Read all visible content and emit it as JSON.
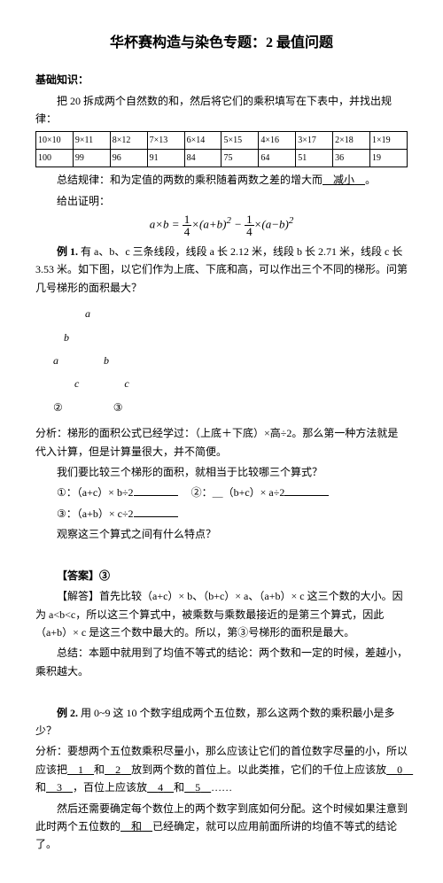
{
  "title": "华杯赛构造与染色专题：2 最值问题",
  "sec1": "基础知识：",
  "intro": "把 20 拆成两个自然数的和，然后将它们的乘积填写在下表中，并找出规律：",
  "table": {
    "row1": [
      "10×10",
      "9×11",
      "8×12",
      "7×13",
      "6×14",
      "5×15",
      "4×16",
      "3×17",
      "2×18",
      "1×19"
    ],
    "row2": [
      "100",
      "99",
      "96",
      "91",
      "84",
      "75",
      "64",
      "51",
      "36",
      "19"
    ]
  },
  "rule_prefix": "总结规律：和为定值的两数的乘积随着两数之差的增大而",
  "rule_ans": "减小",
  "rule_suffix": "。",
  "proof_label": "给出证明：",
  "formula": {
    "lhs": "a×b =",
    "t1a": "×(a+b)",
    "t1exp": "2",
    "mid": " − ",
    "t2a": "×(a−b)",
    "t2exp": "2"
  },
  "ex1": {
    "label": "例 1.",
    "body": "有 a、b、c 三条线段，线段 a 长 2.12 米，线段 b 长 2.71 米，线段 c 长 3.53 米。如下图，以它们作为上底、下底和高，可以作出三个不同的梯形。问第几号梯形的面积最大？"
  },
  "diagram": {
    "r1": "            a",
    "r2": "    b",
    "r3": "a                 b",
    "r4": "        c                 c",
    "c1": "②",
    "c2": "③"
  },
  "analysis1": {
    "p1": "分析：梯形的面积公式已经学过：（上底＋下底）×高÷2。那么第一种方法就是代入计算，但是计算量很大，并不简便。",
    "p2": "我们要比较三个梯形的面积，就相当于比较哪三个算式？",
    "l1a": "①：（a+c）× b÷2",
    "l1b": "②：＿（b+c）× a÷2",
    "l2": "③：（a+b）× c÷2",
    "p3": "观察这三个算式之间有什么特点？"
  },
  "ans": {
    "head": "【答案】③",
    "body": "【解答】首先比较（a+c）× b、（b+c）× a、（a+b）× c 这三个数的大小。因为 a<b<c，所以这三个算式中，被乘数与乘数最接近的是第三个算式，因此（a+b）× c 是这三个数中最大的。所以，第③号梯形的面积是最大。",
    "note": "总结：本题中就用到了均值不等式的结论：两个数和一定的时候，差越小，乘积越大。"
  },
  "ex2": {
    "label": "例 2.",
    "q": "用 0~9 这 10 个数字组成两个五位数，那么这两个数的乘积最小是多少？",
    "p_pre": "分析：要想两个五位数乘积尽量小，那么应该让它们的首位数字尽量的小，所以应该把",
    "a1": "1",
    "mid1": "和",
    "a2": "2",
    "p_mid": "放到两个数的首位上。以此类推，它们的千位上应该放",
    "a3": "0",
    "mid2": "和",
    "a4": "3",
    "p_mid2": "，百位上应该放",
    "a5": "4",
    "mid3": "和",
    "a6": "5",
    "p_end": "……",
    "p2a": "然后还需要确定每个数位上的两个数字到底如何分配。这个时候如果注意到此时两个五位数的",
    "a7": "和",
    "p2b": "已经确定，就可以应用前面所讲的均值不等式的结论了。"
  }
}
